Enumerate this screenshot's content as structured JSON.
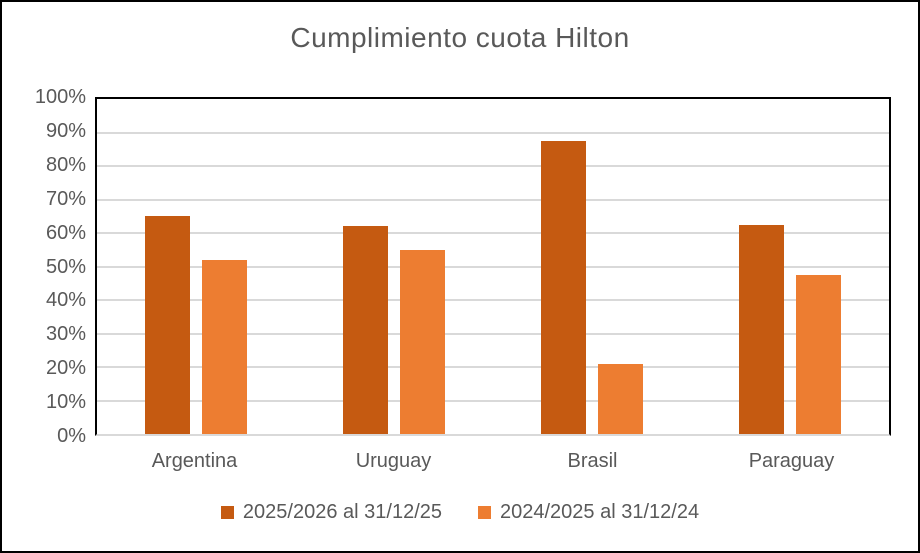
{
  "window": {
    "background": "#FFFFFF",
    "border_color": "#000000"
  },
  "chart_data": {
    "type": "bar",
    "title": "Cumplimiento cuota Hilton",
    "categories": [
      "Argentina",
      "Uruguay",
      "Brasil",
      "Paraguay"
    ],
    "series": [
      {
        "name": "2025/2026 al 31/12/25",
        "color": "#C55A11",
        "values": [
          65,
          62,
          87.5,
          62.5
        ]
      },
      {
        "name": "2024/2025 al 31/12/24",
        "color": "#ED7D31",
        "values": [
          52,
          55,
          21,
          47.5
        ]
      }
    ],
    "xlabel": "",
    "ylabel": "",
    "ylim": [
      0,
      100
    ],
    "ytick_step": 10,
    "ytick_suffix": "%",
    "grid": true,
    "gridline_color": "#D9D9D9",
    "plot_border_color": "#000000",
    "text_color": "#595959",
    "legend_position": "bottom"
  }
}
